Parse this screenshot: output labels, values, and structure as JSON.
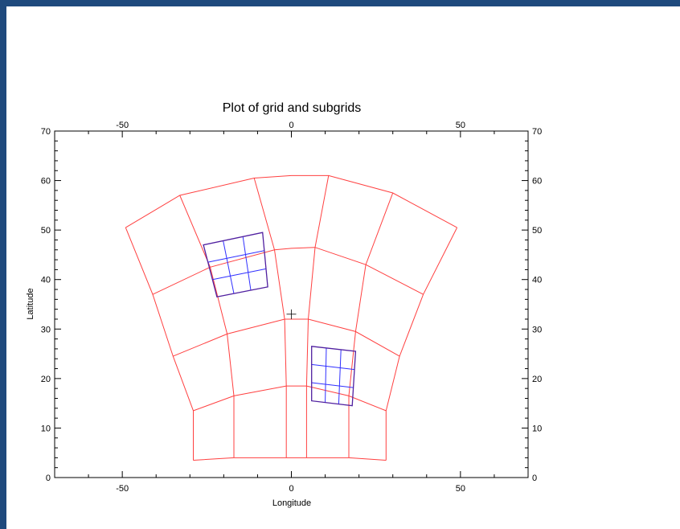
{
  "chart_data": {
    "type": "line",
    "title": "Plot of grid and subgrids",
    "xlabel": "Longitude",
    "ylabel": "Latitude",
    "xlim": [
      -70,
      70
    ],
    "ylim": [
      0,
      70
    ],
    "x_ticks": [
      -50,
      0,
      50
    ],
    "y_ticks": [
      0,
      10,
      20,
      30,
      40,
      50,
      60,
      70
    ],
    "grid": false,
    "colors": {
      "grid": "#ff4040",
      "subgrid": "#3030ff",
      "subgrid_border": "#5020a0"
    },
    "center_marker": [
      0,
      33
    ],
    "main_grid": {
      "lon_lines": [
        [
          [
            -49,
            50.5
          ],
          [
            -41,
            37
          ],
          [
            -35,
            24.5
          ],
          [
            -29,
            13.5
          ],
          [
            -29,
            3.5
          ]
        ],
        [
          [
            -33,
            57
          ],
          [
            -24,
            42.5
          ],
          [
            -19,
            29
          ],
          [
            -17,
            16.5
          ],
          [
            -17,
            4
          ]
        ],
        [
          [
            -11,
            60.5
          ],
          [
            -5,
            46
          ],
          [
            -2,
            32
          ],
          [
            -1.5,
            18.5
          ],
          [
            -1.5,
            4
          ]
        ],
        [
          [
            11,
            61
          ],
          [
            7,
            46.5
          ],
          [
            5,
            32
          ],
          [
            4.5,
            18.5
          ],
          [
            4.5,
            4
          ]
        ],
        [
          [
            30,
            57.5
          ],
          [
            22,
            43
          ],
          [
            19,
            29.5
          ],
          [
            17,
            16.5
          ],
          [
            17,
            4
          ]
        ],
        [
          [
            49,
            50.5
          ],
          [
            39,
            37
          ],
          [
            32,
            24.5
          ],
          [
            28,
            13.5
          ],
          [
            28,
            3.5
          ]
        ]
      ],
      "lat_lines": [
        [
          [
            -49,
            50.5
          ],
          [
            -33,
            57
          ],
          [
            -11,
            60.5
          ],
          [
            0,
            61
          ],
          [
            11,
            61
          ],
          [
            30,
            57.5
          ],
          [
            49,
            50.5
          ]
        ],
        [
          [
            -41,
            37
          ],
          [
            -24,
            42.5
          ],
          [
            -5,
            46
          ],
          [
            0,
            46.3
          ],
          [
            7,
            46.5
          ],
          [
            22,
            43
          ],
          [
            39,
            37
          ]
        ],
        [
          [
            -35,
            24.5
          ],
          [
            -19,
            29
          ],
          [
            -2,
            32
          ],
          [
            0,
            32
          ],
          [
            5,
            32
          ],
          [
            19,
            29.5
          ],
          [
            32,
            24.5
          ]
        ],
        [
          [
            -29,
            13.5
          ],
          [
            -17,
            16.5
          ],
          [
            -1.5,
            18.5
          ],
          [
            0,
            18.5
          ],
          [
            4.5,
            18.5
          ],
          [
            17,
            16.5
          ],
          [
            28,
            13.5
          ]
        ],
        [
          [
            -29,
            3.5
          ],
          [
            -17,
            4
          ],
          [
            -1.5,
            4
          ],
          [
            4.5,
            4
          ],
          [
            17,
            4
          ],
          [
            28,
            3.5
          ]
        ]
      ]
    },
    "subgrids": [
      {
        "corners": {
          "tl": [
            -26,
            47
          ],
          "tr": [
            -8.5,
            49.5
          ],
          "bl": [
            -22,
            36.5
          ],
          "br": [
            -7,
            38.5
          ]
        },
        "divisions": 3
      },
      {
        "corners": {
          "tl": [
            6,
            26.5
          ],
          "tr": [
            19,
            25.5
          ],
          "bl": [
            6,
            15.5
          ],
          "br": [
            18,
            14.5
          ]
        },
        "divisions": 3
      }
    ]
  }
}
